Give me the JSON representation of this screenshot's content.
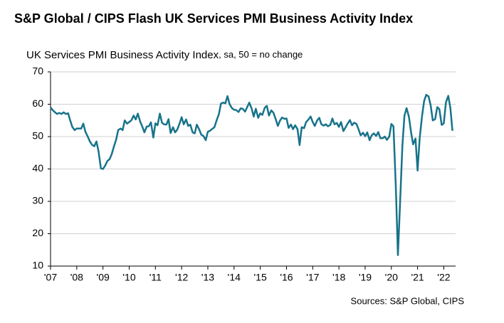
{
  "chart_data": {
    "type": "line",
    "title": "S&P Global / CIPS Flash UK Services PMI Business Activity Index",
    "y_label": "UK Services PMI Business Activity Index",
    "y_label_note": ", sa, 50 = no change",
    "source": "Sources: S&P Global, CIPS",
    "x": [
      2007.0,
      2007.08,
      2007.17,
      2007.25,
      2007.33,
      2007.42,
      2007.5,
      2007.58,
      2007.67,
      2007.75,
      2007.83,
      2007.92,
      2008.0,
      2008.08,
      2008.17,
      2008.25,
      2008.33,
      2008.42,
      2008.5,
      2008.58,
      2008.67,
      2008.75,
      2008.83,
      2008.92,
      2009.0,
      2009.08,
      2009.17,
      2009.25,
      2009.33,
      2009.42,
      2009.5,
      2009.58,
      2009.67,
      2009.75,
      2009.83,
      2009.92,
      2010.0,
      2010.08,
      2010.17,
      2010.25,
      2010.33,
      2010.42,
      2010.5,
      2010.58,
      2010.67,
      2010.75,
      2010.83,
      2010.92,
      2011.0,
      2011.08,
      2011.17,
      2011.25,
      2011.33,
      2011.42,
      2011.5,
      2011.58,
      2011.67,
      2011.75,
      2011.83,
      2011.92,
      2012.0,
      2012.08,
      2012.17,
      2012.25,
      2012.33,
      2012.42,
      2012.5,
      2012.58,
      2012.67,
      2012.75,
      2012.83,
      2012.92,
      2013.0,
      2013.08,
      2013.17,
      2013.25,
      2013.33,
      2013.42,
      2013.5,
      2013.58,
      2013.67,
      2013.75,
      2013.83,
      2013.92,
      2014.0,
      2014.08,
      2014.17,
      2014.25,
      2014.33,
      2014.42,
      2014.5,
      2014.58,
      2014.67,
      2014.75,
      2014.83,
      2014.92,
      2015.0,
      2015.08,
      2015.17,
      2015.25,
      2015.33,
      2015.42,
      2015.5,
      2015.58,
      2015.67,
      2015.75,
      2015.83,
      2015.92,
      2016.0,
      2016.08,
      2016.17,
      2016.25,
      2016.33,
      2016.42,
      2016.5,
      2016.58,
      2016.67,
      2016.75,
      2016.83,
      2016.92,
      2017.0,
      2017.08,
      2017.17,
      2017.25,
      2017.33,
      2017.42,
      2017.5,
      2017.58,
      2017.67,
      2017.75,
      2017.83,
      2017.92,
      2018.0,
      2018.08,
      2018.17,
      2018.25,
      2018.33,
      2018.42,
      2018.5,
      2018.58,
      2018.67,
      2018.75,
      2018.83,
      2018.92,
      2019.0,
      2019.08,
      2019.17,
      2019.25,
      2019.33,
      2019.42,
      2019.5,
      2019.58,
      2019.67,
      2019.75,
      2019.83,
      2019.92,
      2020.0,
      2020.08,
      2020.17,
      2020.25,
      2020.33,
      2020.42,
      2020.5,
      2020.58,
      2020.67,
      2020.75,
      2020.83,
      2020.92,
      2021.0,
      2021.08,
      2021.17,
      2021.25,
      2021.33,
      2021.42,
      2021.5,
      2021.58,
      2021.67,
      2021.75,
      2021.83,
      2021.92,
      2022.0,
      2022.08,
      2022.17,
      2022.25,
      2022.33
    ],
    "series": [
      {
        "name": "UK Services PMI Business Activity Index",
        "color": "#17738a",
        "values": [
          59.0,
          58.2,
          57.5,
          57.0,
          57.3,
          57.0,
          57.5,
          57.0,
          57.2,
          55.0,
          53.0,
          52.0,
          52.5,
          52.5,
          52.5,
          54.0,
          51.5,
          50.0,
          48.5,
          47.5,
          47.0,
          48.5,
          45.5,
          40.2,
          40.0,
          41.0,
          42.5,
          43.0,
          44.5,
          47.0,
          49.0,
          52.0,
          52.5,
          52.0,
          55.0,
          54.0,
          54.5,
          55.0,
          56.5,
          55.3,
          57.1,
          54.6,
          53.1,
          51.3,
          53.1,
          53.2,
          54.4,
          49.7,
          54.1,
          53.5,
          57.1,
          54.3,
          53.8,
          53.7,
          55.4,
          51.1,
          52.9,
          51.3,
          52.1,
          54.0,
          56.0,
          53.8,
          55.3,
          53.3,
          53.7,
          51.3,
          51.0,
          53.7,
          52.2,
          50.6,
          50.2,
          48.9,
          51.5,
          51.8,
          52.4,
          52.9,
          54.9,
          56.9,
          60.2,
          60.5,
          60.3,
          62.5,
          60.0,
          58.8,
          58.3,
          58.2,
          57.6,
          58.7,
          58.6,
          57.7,
          59.1,
          60.5,
          58.7,
          56.2,
          58.6,
          55.8,
          57.2,
          56.7,
          58.9,
          59.5,
          56.5,
          58.1,
          57.4,
          55.6,
          53.3,
          54.9,
          55.9,
          55.5,
          55.6,
          52.7,
          53.7,
          52.3,
          53.5,
          52.3,
          47.4,
          52.9,
          52.6,
          54.5,
          55.2,
          56.2,
          54.5,
          53.3,
          55.0,
          55.8,
          53.8,
          53.4,
          53.8,
          53.2,
          53.6,
          55.6,
          53.8,
          54.2,
          53.0,
          54.5,
          51.7,
          52.8,
          54.0,
          55.1,
          53.5,
          54.3,
          53.9,
          52.2,
          50.4,
          51.2,
          50.1,
          51.3,
          48.9,
          50.4,
          51.0,
          50.2,
          51.4,
          49.5,
          49.5,
          50.0,
          49.0,
          50.0,
          53.9,
          53.2,
          34.5,
          13.4,
          29.0,
          47.1,
          56.5,
          58.8,
          56.1,
          51.4,
          47.6,
          49.4,
          39.5,
          49.5,
          56.3,
          61.0,
          62.9,
          62.4,
          59.6,
          55.0,
          55.4,
          59.1,
          58.5,
          53.6,
          54.1,
          60.5,
          62.6,
          58.9,
          51.8
        ]
      }
    ],
    "xlim": [
      2007,
      2022.45
    ],
    "xticks": [
      {
        "value": 2007,
        "label": "'07"
      },
      {
        "value": 2008,
        "label": "'08"
      },
      {
        "value": 2009,
        "label": "'09"
      },
      {
        "value": 2010,
        "label": "'10"
      },
      {
        "value": 2011,
        "label": "'11"
      },
      {
        "value": 2012,
        "label": "'12"
      },
      {
        "value": 2013,
        "label": "'13"
      },
      {
        "value": 2014,
        "label": "'14"
      },
      {
        "value": 2015,
        "label": "'15"
      },
      {
        "value": 2016,
        "label": "'16"
      },
      {
        "value": 2017,
        "label": "'17"
      },
      {
        "value": 2018,
        "label": "'18"
      },
      {
        "value": 2019,
        "label": "'19"
      },
      {
        "value": 2020,
        "label": "'20"
      },
      {
        "value": 2021,
        "label": "'21"
      },
      {
        "value": 2022,
        "label": "'22"
      }
    ],
    "ylim": [
      10,
      70
    ],
    "yticks": [
      10,
      20,
      30,
      40,
      50,
      60,
      70
    ],
    "grid": true
  }
}
